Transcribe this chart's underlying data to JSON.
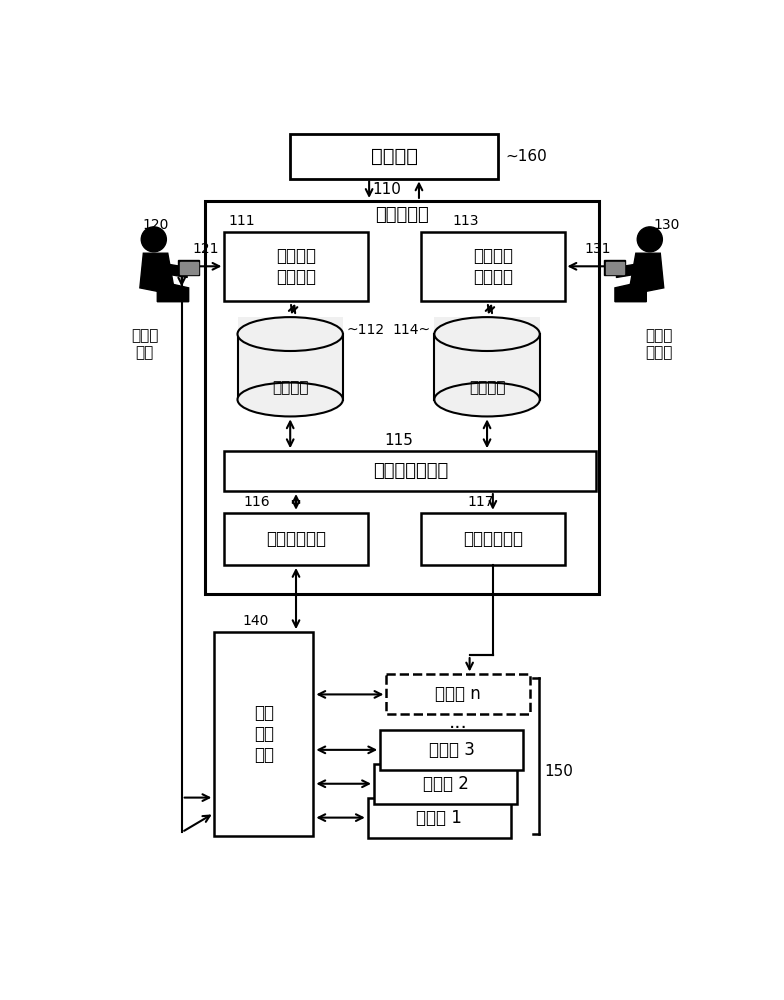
{
  "bg_color": "#ffffff",
  "line_color": "#000000",
  "labels": {
    "auth_center": "认证中心",
    "mgmt_server": "管理服务器",
    "use_req_unit": "使用请求\n处理单元",
    "use_perm_unit": "使用许可\n处理单元",
    "req_policy": "请求策略",
    "perm_policy": "许可策略",
    "sensor_search": "传感器搜索单元",
    "access_mgmt": "访问管理单元",
    "state_mgmt": "状态管理单元",
    "access_ctrl": "访问\n控制\n单元",
    "sensor_n": "传感器 n",
    "sensor_3": "传感器 3",
    "sensor_2": "传感器 2",
    "sensor_1": "传感器 1",
    "sensor_user_line1": "传感器",
    "sensor_user_line2": "用户",
    "sensor_provider_line1": "传感器",
    "sensor_provider_line2": "提供商",
    "dots": "..."
  },
  "ids": {
    "auth": "~160",
    "mgmt": "110",
    "req_unit": "111",
    "perm_unit": "113",
    "req_pol": "~112",
    "perm_pol": "114~",
    "search": "115",
    "access_mgmt": "116",
    "state_mgmt": "117",
    "access_ctrl": "140",
    "sensors": "150",
    "user_120": "120",
    "user_121": "121",
    "prov_130": "130",
    "prov_131": "131"
  }
}
